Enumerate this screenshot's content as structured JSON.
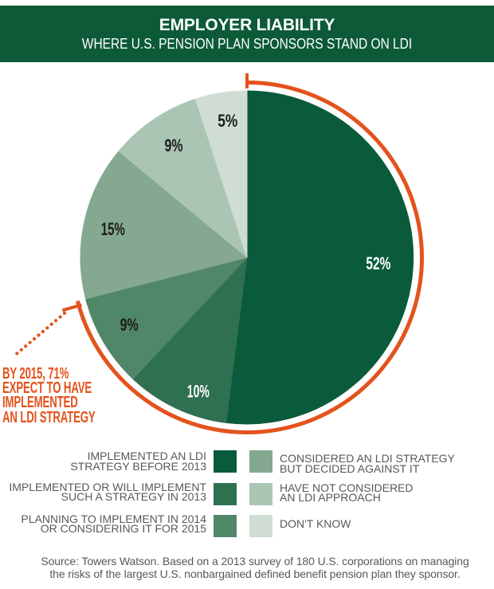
{
  "header": {
    "title": "EMPLOYER LIABILITY",
    "subtitle": "WHERE U.S. PENSION PLAN SPONSORS STAND ON LDI",
    "background_color": "#0d5a38",
    "text_color": "#ffffff"
  },
  "chart_data": {
    "type": "pie",
    "title": "EMPLOYER LIABILITY",
    "subtitle": "WHERE U.S. PENSION PLAN SPONSORS STAND ON LDI",
    "start_angle": "12 o'clock, clockwise",
    "slices": [
      {
        "label": "IMPLEMENTED AN LDI\nSTRATEGY BEFORE 2013",
        "value": 52,
        "value_label": "52%",
        "color": "#0a5b3c",
        "value_label_color": "#ffffff"
      },
      {
        "label": "IMPLEMENTED OR WILL IMPLEMENT\nSUCH A STRATEGY IN 2013",
        "value": 10,
        "value_label": "10%",
        "color": "#2f7050",
        "value_label_color": "#ffffff"
      },
      {
        "label": "PLANNING TO IMPLEMENT IN 2014\nOR CONSIDERING IT FOR 2015",
        "value": 9,
        "value_label": "9%",
        "color": "#518769",
        "value_label_color": "#1d1d1b"
      },
      {
        "label": "CONSIDERED AN LDI STRATEGY\nBUT DECIDED AGAINST IT",
        "value": 15,
        "value_label": "15%",
        "color": "#84a890",
        "value_label_color": "#1d1d1b"
      },
      {
        "label": "HAVE NOT CONSIDERED\nAN LDI APPROACH",
        "value": 9,
        "value_label": "9%",
        "color": "#abc5b4",
        "value_label_color": "#1d1d1b"
      },
      {
        "label": "DON'T KNOW",
        "value": 5,
        "value_label": "5%",
        "color": "#cfddd2",
        "value_label_color": "#1d1d1b"
      }
    ],
    "annotation": {
      "text": "BY 2015, 71%\nEXPECT TO HAVE\nIMPLEMENTED\nAN LDI STRATEGY",
      "covers_percent": 71,
      "color": "#e3531c"
    },
    "legend_position": "bottom"
  },
  "source": {
    "text": "Source: Towers Watson. Based on a 2013 survey of 180 U.S. corporations on managing the risks of the largest U.S. nonbargained defined benefit pension plan they sponsor."
  }
}
